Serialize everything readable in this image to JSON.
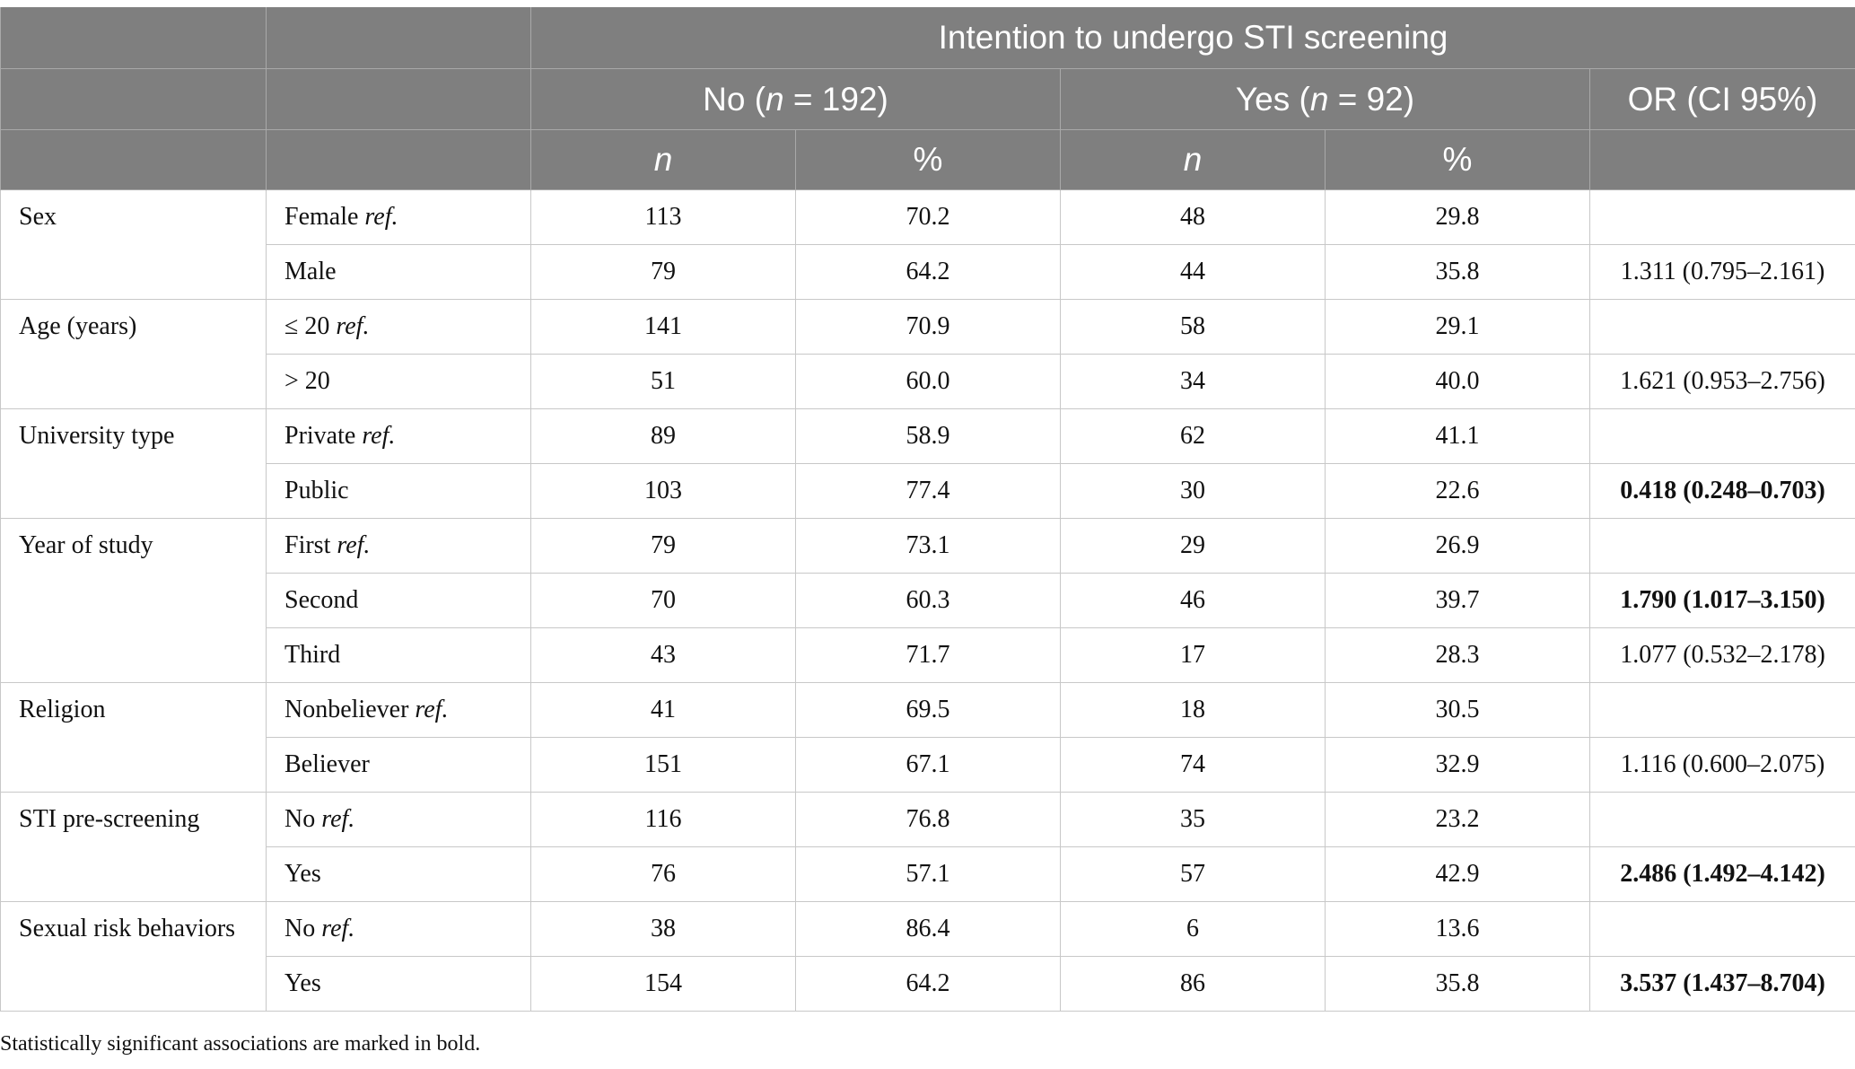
{
  "header": {
    "title": "Intention to undergo STI screening",
    "groups": [
      {
        "label": "No (",
        "n_sym": "n",
        "rest": " = 192)"
      },
      {
        "label": "Yes (",
        "n_sym": "n",
        "rest": " = 92)"
      }
    ],
    "or_label": "OR (CI 95%)",
    "sub_n": "n",
    "sub_pct": "%"
  },
  "ref_label": "ref.",
  "rows": [
    {
      "category": "Sex",
      "level": "Female ",
      "ref": true,
      "no_n": "113",
      "no_pct": "70.2",
      "yes_n": "48",
      "yes_pct": "29.8",
      "or": "",
      "sig": false
    },
    {
      "category": "",
      "level": "Male",
      "ref": false,
      "no_n": "79",
      "no_pct": "64.2",
      "yes_n": "44",
      "yes_pct": "35.8",
      "or": "1.311 (0.795–2.161)",
      "sig": false
    },
    {
      "category": "Age (years)",
      "level": "≤ 20 ",
      "ref": true,
      "no_n": "141",
      "no_pct": "70.9",
      "yes_n": "58",
      "yes_pct": "29.1",
      "or": "",
      "sig": false
    },
    {
      "category": "",
      "level": "> 20",
      "ref": false,
      "no_n": "51",
      "no_pct": "60.0",
      "yes_n": "34",
      "yes_pct": "40.0",
      "or": "1.621 (0.953–2.756)",
      "sig": false
    },
    {
      "category": "University type",
      "level": "Private ",
      "ref": true,
      "no_n": "89",
      "no_pct": "58.9",
      "yes_n": "62",
      "yes_pct": "41.1",
      "or": "",
      "sig": false
    },
    {
      "category": "",
      "level": "Public",
      "ref": false,
      "no_n": "103",
      "no_pct": "77.4",
      "yes_n": "30",
      "yes_pct": "22.6",
      "or": "0.418 (0.248–0.703)",
      "sig": true
    },
    {
      "category": "Year of study",
      "level": "First ",
      "ref": true,
      "no_n": "79",
      "no_pct": "73.1",
      "yes_n": "29",
      "yes_pct": "26.9",
      "or": "",
      "sig": false
    },
    {
      "category": "",
      "level": "Second",
      "ref": false,
      "no_n": "70",
      "no_pct": "60.3",
      "yes_n": "46",
      "yes_pct": "39.7",
      "or": "1.790 (1.017–3.150)",
      "sig": true
    },
    {
      "category": "",
      "level": "Third",
      "ref": false,
      "no_n": "43",
      "no_pct": "71.7",
      "yes_n": "17",
      "yes_pct": "28.3",
      "or": "1.077 (0.532–2.178)",
      "sig": false
    },
    {
      "category": "Religion",
      "level": "Nonbeliever ",
      "ref": true,
      "no_n": "41",
      "no_pct": "69.5",
      "yes_n": "18",
      "yes_pct": "30.5",
      "or": "",
      "sig": false
    },
    {
      "category": "",
      "level": "Believer",
      "ref": false,
      "no_n": "151",
      "no_pct": "67.1",
      "yes_n": "74",
      "yes_pct": "32.9",
      "or": "1.116 (0.600–2.075)",
      "sig": false
    },
    {
      "category": "STI pre-screening",
      "level": "No ",
      "ref": true,
      "no_n": "116",
      "no_pct": "76.8",
      "yes_n": "35",
      "yes_pct": "23.2",
      "or": "",
      "sig": false
    },
    {
      "category": "",
      "level": "Yes",
      "ref": false,
      "no_n": "76",
      "no_pct": "57.1",
      "yes_n": "57",
      "yes_pct": "42.9",
      "or": "2.486 (1.492–4.142)",
      "sig": true
    },
    {
      "category": "Sexual risk behaviors",
      "level": "No ",
      "ref": true,
      "no_n": "38",
      "no_pct": "86.4",
      "yes_n": "6",
      "yes_pct": "13.6",
      "or": "",
      "sig": false
    },
    {
      "category": "",
      "level": "Yes",
      "ref": false,
      "no_n": "154",
      "no_pct": "64.2",
      "yes_n": "86",
      "yes_pct": "35.8",
      "or": "3.537 (1.437–8.704)",
      "sig": true
    }
  ],
  "groups_rowspan": [
    2,
    2,
    2,
    3,
    2,
    2,
    2
  ],
  "footnote": "Statistically significant associations are marked in bold.",
  "colors": {
    "header_bg": "#7f7f7f",
    "header_text": "#ffffff",
    "grid": "#c8c8c8"
  }
}
